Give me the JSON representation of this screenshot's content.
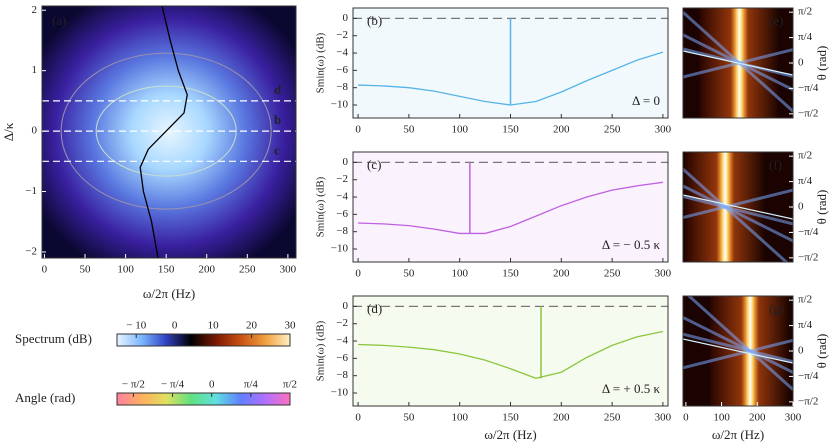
{
  "chart_data": [
    {
      "type": "heatmap",
      "panel_label": "(a)",
      "x_label": "ω/2π  (Hz)",
      "y_label": "Δ/κ",
      "xlim": [
        -3,
        310
      ],
      "ylim": [
        -2.1,
        2.07
      ],
      "xticks": [
        0,
        50,
        100,
        150,
        200,
        250,
        300
      ],
      "yticks": [
        {
          "value": -2,
          "label": "−2"
        },
        {
          "value": -1,
          "label": "−1"
        },
        0,
        1,
        2
      ],
      "series": [
        {
          "color": "#000000",
          "x": [
            145,
            155,
            165,
            176,
            172,
            150,
            128,
            118,
            122,
            132,
            140
          ],
          "values": [
            2.07,
            1.5,
            1.0,
            0.6,
            0.3,
            0,
            -0.3,
            -0.6,
            -1.0,
            -1.5,
            -2.1
          ]
        }
      ],
      "cuts": [
        {
          "value": 0.5,
          "label": "d"
        },
        {
          "value": 0,
          "label": "b"
        },
        {
          "value": -0.5,
          "label": "c"
        }
      ]
    },
    {
      "type": "colorbar",
      "label": "Spectrum (dB)",
      "lim": [
        -15,
        30
      ],
      "ticks": [
        {
          "value": -10,
          "label": "− 10"
        },
        0,
        10,
        20,
        30
      ],
      "colors": [
        "#e8f4ff",
        "#7ab8ff",
        "#3040c0",
        "#000000",
        "#7a1800",
        "#c85010",
        "#f0a040",
        "#fff0c0"
      ]
    },
    {
      "type": "colorbar",
      "label": "Angle (rad)",
      "lim": [
        -1.9,
        1.571
      ],
      "ticks": [
        {
          "value": -1.5708,
          "label": "− π/2"
        },
        {
          "value": -0.7854,
          "label": "− π/4"
        },
        0,
        {
          "value": 0.7854,
          "label": "π/4"
        },
        {
          "value": 1.5708,
          "label": "π/2"
        }
      ],
      "colors": [
        "#ff80a0",
        "#ffb060",
        "#e0e060",
        "#60e080",
        "#60e0e0",
        "#6080ff",
        "#b070ff",
        "#ff70c0"
      ]
    },
    {
      "type": "line",
      "panel_label": "(b)",
      "y_label": "Smin(ω) (dB)",
      "annotation": "Δ = 0",
      "xlim": [
        -5,
        305
      ],
      "ylim": [
        -11.5,
        1.2
      ],
      "xticks": [
        0,
        50,
        100,
        150,
        200,
        250,
        300
      ],
      "yticks": [
        0,
        {
          "value": -2,
          "label": "−2"
        },
        {
          "value": -4,
          "label": "−4"
        },
        {
          "value": -6,
          "label": "−6"
        },
        {
          "value": -8,
          "label": "−8"
        },
        {
          "value": -10,
          "label": "−10"
        }
      ],
      "reference_line": 0,
      "marker_x": 150,
      "x": [
        0,
        25,
        50,
        75,
        100,
        125,
        150,
        175,
        200,
        225,
        250,
        275,
        300
      ],
      "series": [
        {
          "color": "#55b4e6",
          "values": [
            -7.7,
            -7.8,
            -8.0,
            -8.4,
            -9.0,
            -9.6,
            -10.0,
            -9.6,
            -8.5,
            -7.2,
            -6.0,
            -4.8,
            -3.9
          ]
        }
      ]
    },
    {
      "type": "line",
      "panel_label": "(c)",
      "y_label": "Smin(ω) (dB)",
      "annotation": "Δ = − 0.5 κ",
      "xlim": [
        -5,
        305
      ],
      "ylim": [
        -11.5,
        1.2
      ],
      "xticks": [
        0,
        50,
        100,
        150,
        200,
        250,
        300
      ],
      "yticks": [
        0,
        {
          "value": -2,
          "label": "−2"
        },
        {
          "value": -4,
          "label": "−4"
        },
        {
          "value": -6,
          "label": "−6"
        },
        {
          "value": -8,
          "label": "−8"
        },
        {
          "value": -10,
          "label": "−10"
        }
      ],
      "reference_line": 0,
      "marker_x": 110,
      "x": [
        0,
        25,
        50,
        75,
        100,
        125,
        150,
        175,
        200,
        225,
        250,
        275,
        300
      ],
      "series": [
        {
          "color": "#c060e0",
          "values": [
            -7.0,
            -7.1,
            -7.3,
            -7.7,
            -8.2,
            -8.2,
            -7.4,
            -6.2,
            -5.0,
            -4.0,
            -3.2,
            -2.7,
            -2.3
          ]
        }
      ]
    },
    {
      "type": "line",
      "panel_label": "(d)",
      "y_label": "Smin(ω) (dB)",
      "annotation": "Δ = + 0.5 κ",
      "x_label": "ω/2π (Hz)",
      "xlim": [
        -5,
        305
      ],
      "ylim": [
        -11.5,
        1.2
      ],
      "xticks": [
        0,
        50,
        100,
        150,
        200,
        250,
        300
      ],
      "yticks": [
        0,
        {
          "value": -2,
          "label": "−2"
        },
        {
          "value": -4,
          "label": "−4"
        },
        {
          "value": -6,
          "label": "−6"
        },
        {
          "value": -8,
          "label": "−8"
        },
        {
          "value": -10,
          "label": "−10"
        }
      ],
      "reference_line": 0,
      "marker_x": 180,
      "x": [
        0,
        25,
        50,
        75,
        100,
        125,
        150,
        175,
        200,
        225,
        250,
        275,
        300
      ],
      "series": [
        {
          "color": "#8cc63f",
          "values": [
            -4.4,
            -4.5,
            -4.7,
            -5.0,
            -5.5,
            -6.2,
            -7.2,
            -8.3,
            -7.6,
            -5.9,
            -4.5,
            -3.5,
            -2.9
          ]
        }
      ]
    },
    {
      "type": "phase_map",
      "panel_label": "(e)",
      "y_label": "θ  (rad)",
      "resonance_x": 150,
      "xlim": [
        -8,
        300
      ],
      "ylim": [
        -1.7,
        1.7
      ],
      "yticks": [
        {
          "value": 1.5708,
          "label": "π/2"
        },
        {
          "value": 0.7854,
          "label": "π/4"
        },
        0,
        {
          "value": -0.7854,
          "label": "−π/4"
        },
        {
          "value": -1.5708,
          "label": "−π/2"
        }
      ]
    },
    {
      "type": "phase_map",
      "panel_label": "(f)",
      "y_label": "θ  (rad)",
      "resonance_x": 110,
      "xlim": [
        -8,
        300
      ],
      "ylim": [
        -1.7,
        1.7
      ],
      "yticks": [
        {
          "value": 1.5708,
          "label": "π/2"
        },
        {
          "value": 0.7854,
          "label": "π/4"
        },
        0,
        {
          "value": -0.7854,
          "label": "−π/4"
        },
        {
          "value": -1.5708,
          "label": "−π/2"
        }
      ]
    },
    {
      "type": "phase_map",
      "panel_label": "(g)",
      "y_label": "θ  (rad)",
      "resonance_x": 180,
      "x_label": "ω/2π  (Hz)",
      "xlim": [
        -8,
        300
      ],
      "ylim": [
        -1.7,
        1.7
      ],
      "xticks": [
        0,
        100,
        200,
        300
      ],
      "yticks": [
        {
          "value": 1.5708,
          "label": "π/2"
        },
        {
          "value": 0.7854,
          "label": "π/4"
        },
        0,
        {
          "value": -0.7854,
          "label": "−π/4"
        },
        {
          "value": -1.5708,
          "label": "−π/2"
        }
      ]
    }
  ]
}
